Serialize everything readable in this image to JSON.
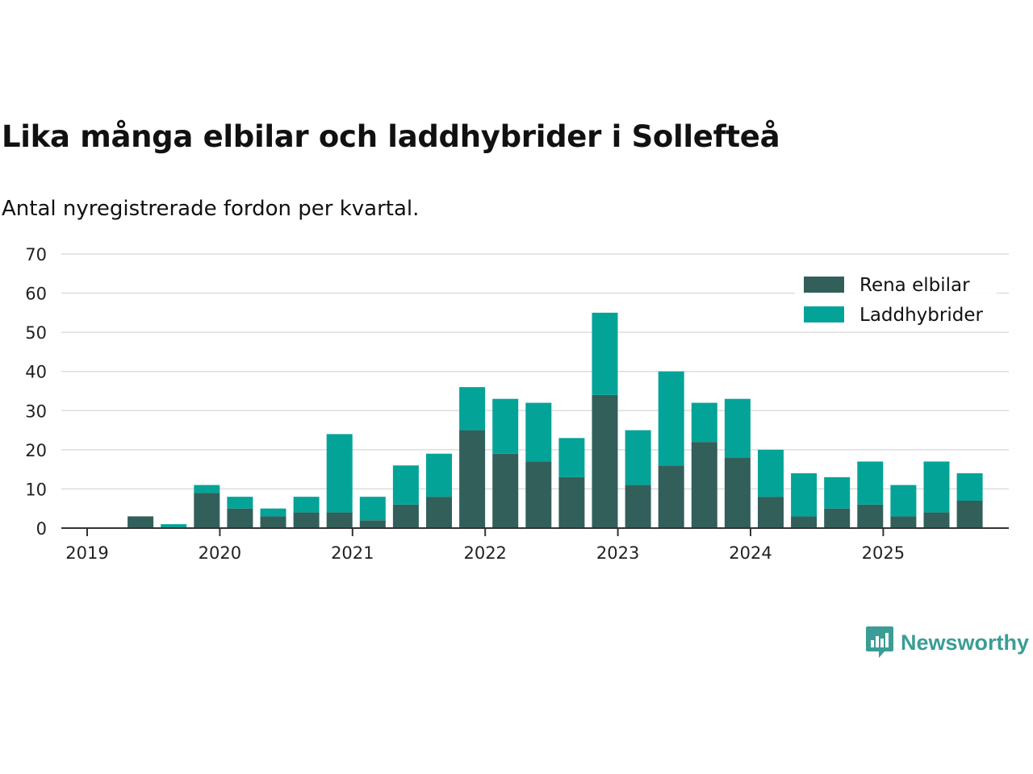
{
  "chart_data": {
    "type": "bar",
    "stacked": true,
    "title": "Lika många elbilar och laddhybrider i Sollefteå",
    "subtitle": "Antal nyregistrerade fordon per kvartal.",
    "xlabel": "",
    "ylabel": "",
    "ylim": [
      0,
      70
    ],
    "yticks": [
      "0",
      "10",
      "20",
      "30",
      "40",
      "50",
      "60",
      "70"
    ],
    "xtick_labels": [
      "2019",
      "2020",
      "2021",
      "2022",
      "2023",
      "2024",
      "2025"
    ],
    "categories": [
      "2019 Q1",
      "2019 Q2",
      "2019 Q3",
      "2019 Q4",
      "2020 Q1",
      "2020 Q2",
      "2020 Q3",
      "2020 Q4",
      "2021 Q1",
      "2021 Q2",
      "2021 Q3",
      "2021 Q4",
      "2022 Q1",
      "2022 Q2",
      "2022 Q3",
      "2022 Q4",
      "2023 Q1",
      "2023 Q2",
      "2023 Q3",
      "2023 Q4",
      "2024 Q1",
      "2024 Q2",
      "2024 Q3",
      "2024 Q4",
      "2025 Q1",
      "2025 Q2",
      "2025 Q3"
    ],
    "series": [
      {
        "name": "Rena elbilar",
        "color": "#335f5a",
        "values": [
          0,
          3,
          0,
          9,
          5,
          3,
          4,
          4,
          2,
          6,
          8,
          25,
          19,
          17,
          13,
          34,
          11,
          16,
          22,
          18,
          8,
          3,
          5,
          6,
          3,
          4,
          7
        ]
      },
      {
        "name": "Laddhybrider",
        "color": "#04a398",
        "values": [
          0,
          0,
          1,
          2,
          3,
          2,
          4,
          20,
          6,
          10,
          11,
          11,
          14,
          15,
          10,
          21,
          14,
          24,
          10,
          15,
          12,
          11,
          8,
          11,
          8,
          13,
          7
        ]
      }
    ],
    "grid": true,
    "legend_position": "top-right"
  },
  "logo": {
    "text": "Newsworthy",
    "icon": "newsworthy-logo-icon"
  }
}
